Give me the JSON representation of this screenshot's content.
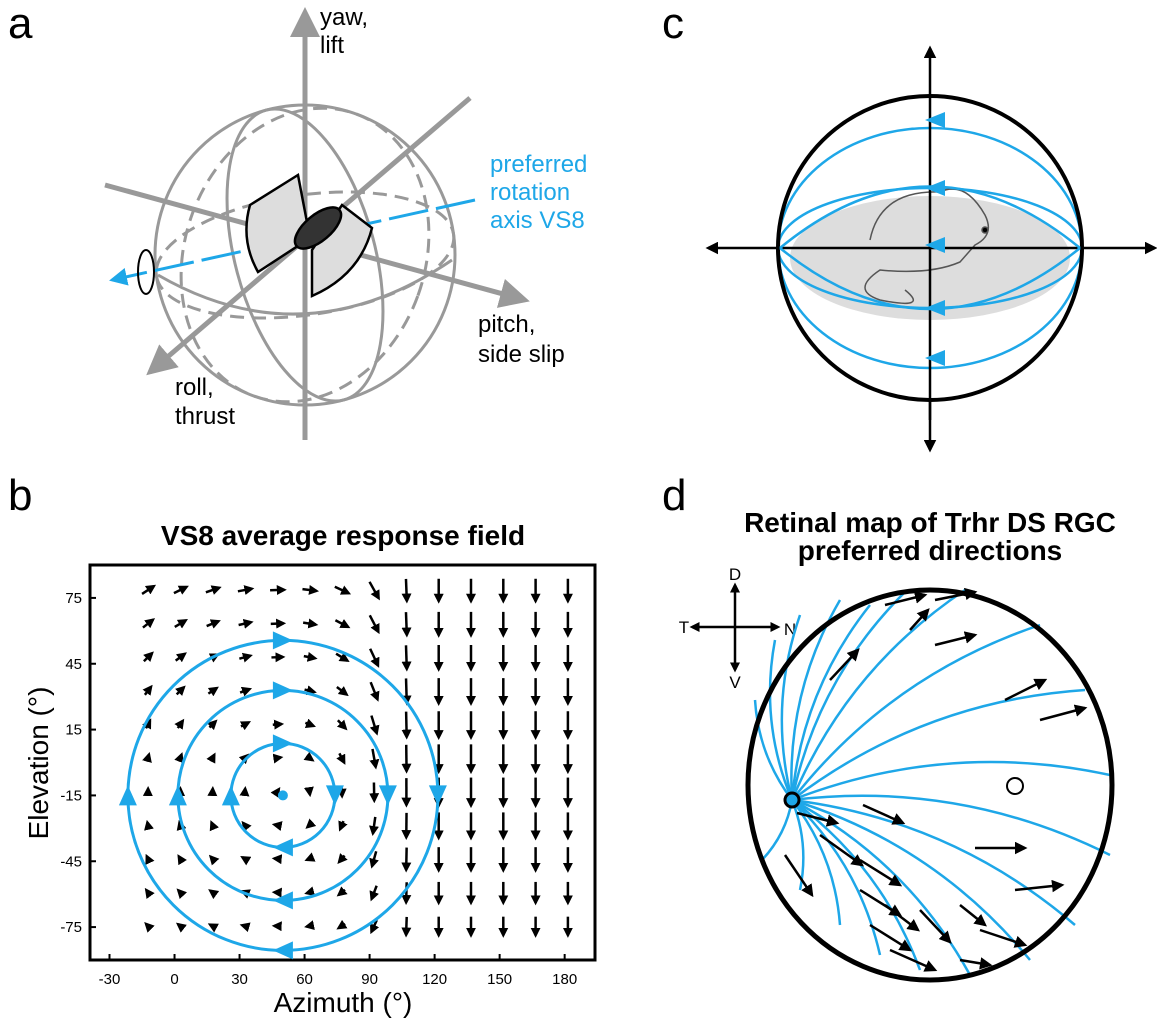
{
  "panel_a": {
    "label": "a",
    "yaw_label": [
      "yaw,",
      "lift"
    ],
    "axis_label": [
      "preferred",
      "rotation",
      "axis VS8"
    ],
    "pitch_label": [
      "pitch,",
      "side slip"
    ],
    "roll_label": [
      "roll,",
      "thrust"
    ]
  },
  "panel_b": {
    "label": "b",
    "title": "VS8 average response field",
    "x_label": "Azimuth (°)",
    "y_label": "Elevation (°)",
    "xlim": [
      -39,
      194
    ],
    "ylim": [
      -90,
      90
    ],
    "xticks": [
      -30,
      0,
      30,
      60,
      90,
      120,
      150,
      180
    ],
    "yticks": [
      75,
      45,
      15,
      -15,
      -45,
      -75
    ],
    "rotation_center": [
      50,
      -15
    ]
  },
  "panel_c": {
    "label": "c"
  },
  "panel_d": {
    "label": "d",
    "title": [
      "Retinal map of Trhr DS RGC",
      "preferred directions"
    ],
    "compass": [
      "D",
      "T",
      "N",
      "V"
    ]
  }
}
